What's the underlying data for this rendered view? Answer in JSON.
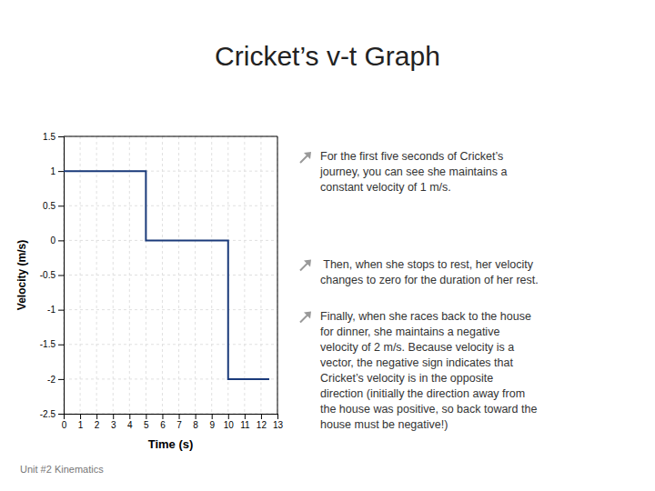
{
  "chart_data": {
    "type": "line",
    "title": "Cricket’s v-t Graph",
    "subtitle": "Unit #2 Kinematics",
    "x_label": "Time (s)",
    "y_label": "Velocity (m/s)",
    "x": [
      0,
      5,
      5,
      10,
      10,
      12.5
    ],
    "values": [
      1,
      1,
      0,
      0,
      -2,
      -2
    ],
    "color": "#1a3a7a",
    "xlim": [
      0,
      13
    ],
    "ylim": [
      -2.5,
      1.5
    ],
    "xticks": [
      0,
      1,
      2,
      3,
      4,
      5,
      6,
      7,
      8,
      9,
      10,
      11,
      12,
      13
    ],
    "yticks": [
      -2.5,
      -2,
      -1.5,
      -1,
      -0.5,
      0,
      0.5,
      1,
      1.5
    ],
    "grid": true,
    "annotations": [
      "For the first five seconds of Cricket’s\njourney, you can see she maintains a\nconstant velocity of 1 m/s.",
      " Then, when she stops to rest, her velocity\nchanges to zero for the duration of her rest.",
      "Finally, when she races back to the house\nfor dinner, she maintains a negative\nvelocity of 2 m/s. Because velocity is a\nvector, the negative sign indicates that\nCricket’s velocity is in the opposite\ndirection (initially the direction away from\nthe house was positive, so back toward the\nhouse must be negative!)"
    ]
  }
}
